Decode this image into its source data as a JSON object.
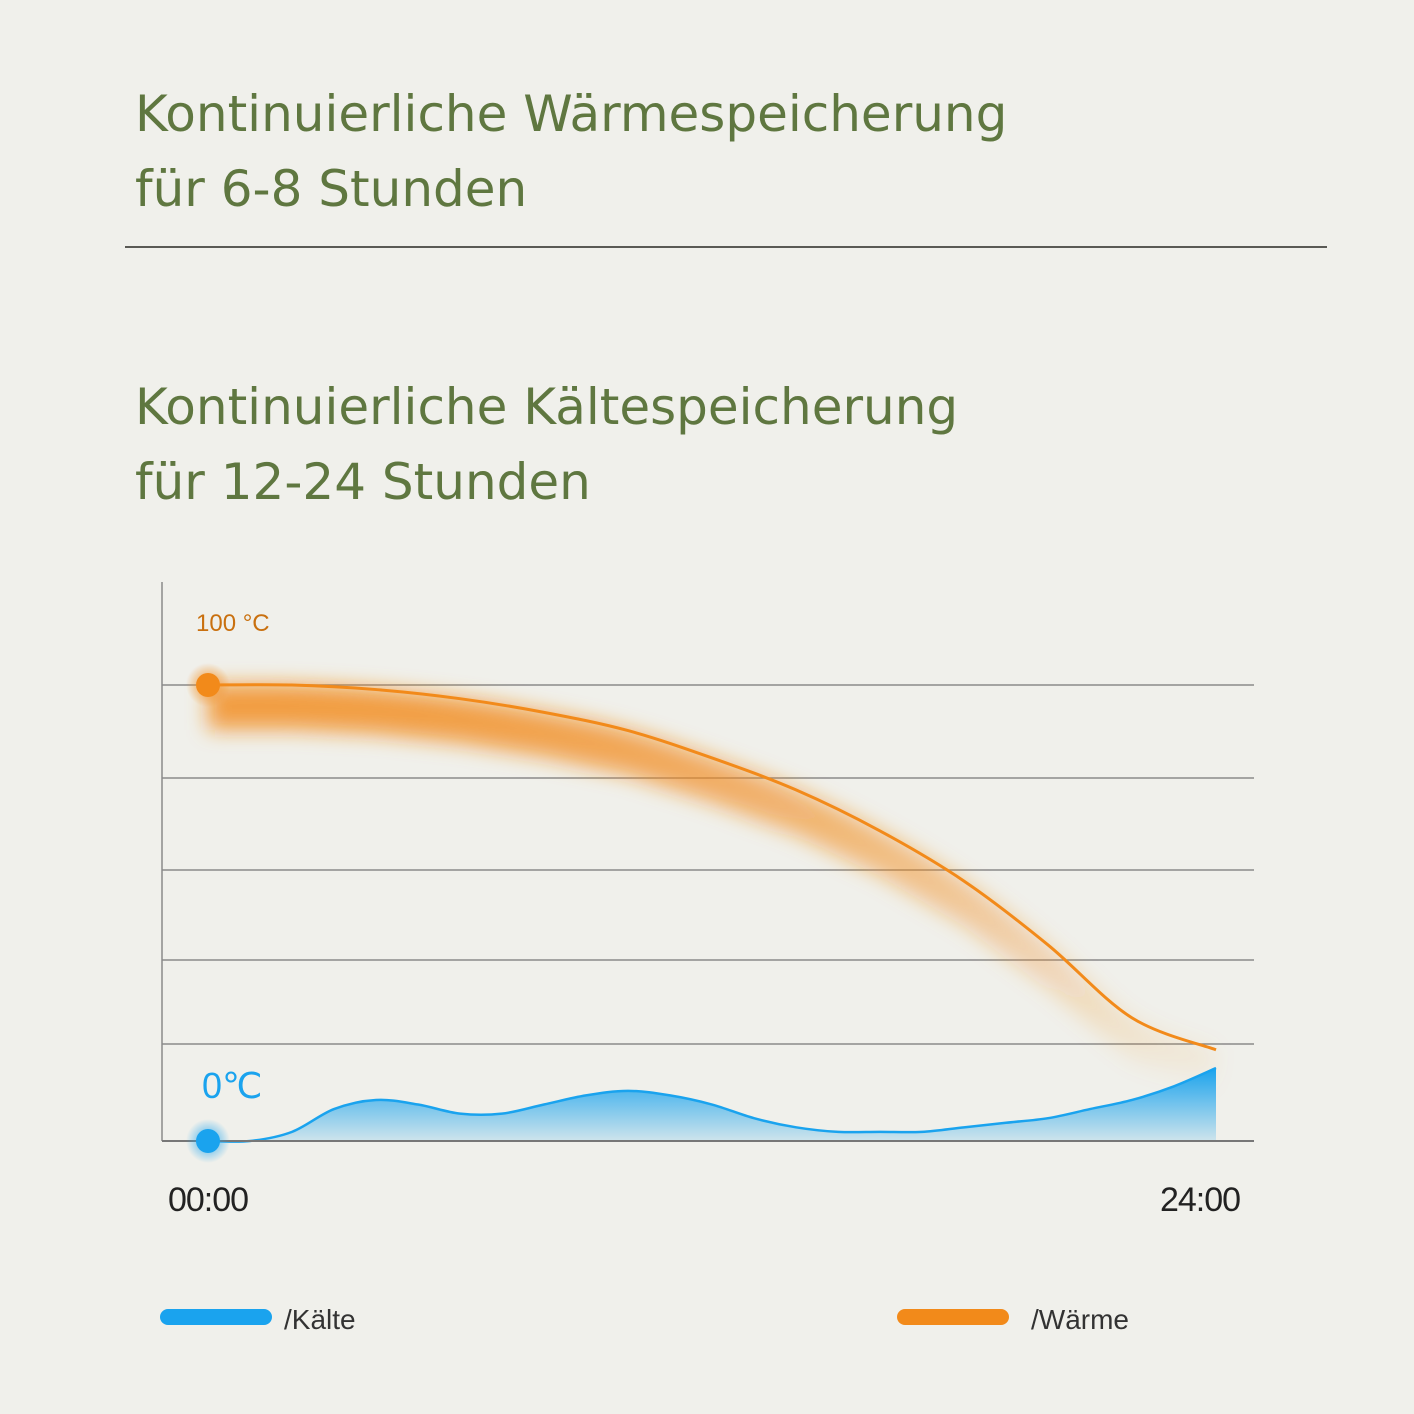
{
  "headings": {
    "heat": {
      "line1": "Kontinuierliche Wärmespeicherung",
      "line2": "für 6-8 Stunden"
    },
    "cold": {
      "line1": "Kontinuierliche Kältespeicherung",
      "line2": "für 12-24 Stunden"
    }
  },
  "colors": {
    "heading": "#5f7740",
    "warm": "#f28a1a",
    "cold": "#1aa3ee",
    "grid": "#8a8a8a",
    "background": "#f0f0eb"
  },
  "chart_data": {
    "type": "area",
    "x_tick_labels": [
      "00:00",
      "24:00"
    ],
    "xlim": [
      0,
      24
    ],
    "ylim": [
      0,
      100
    ],
    "annotations": {
      "warm_start": "100 °C",
      "cold_start": "0℃"
    },
    "grid": true,
    "legend": {
      "position": "bottom"
    },
    "series": [
      {
        "name": "/Kälte",
        "color": "#1aa3ee",
        "x": [
          0,
          1,
          2,
          3,
          4,
          5,
          6,
          7,
          8,
          9,
          10,
          11,
          12,
          13,
          14,
          15,
          16,
          17,
          18,
          19,
          20,
          21,
          22,
          23,
          24
        ],
        "values": [
          0,
          0,
          2,
          7,
          9,
          8,
          6,
          6,
          8,
          10,
          11,
          10,
          8,
          5,
          3,
          2,
          2,
          2,
          3,
          4,
          5,
          7,
          9,
          12,
          16
        ]
      },
      {
        "name": "/Wärme",
        "color": "#f28a1a",
        "x": [
          0,
          2,
          4,
          6,
          8,
          10,
          12,
          14,
          16,
          18,
          20,
          22,
          24
        ],
        "values": [
          100,
          100,
          99,
          97,
          94,
          90,
          84,
          77,
          68,
          57,
          43,
          27,
          20
        ]
      }
    ]
  }
}
